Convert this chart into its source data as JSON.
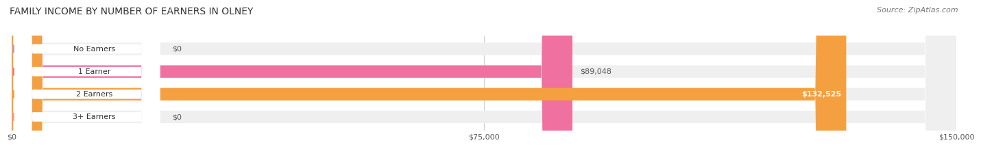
{
  "title": "FAMILY INCOME BY NUMBER OF EARNERS IN OLNEY",
  "source": "Source: ZipAtlas.com",
  "categories": [
    "No Earners",
    "1 Earner",
    "2 Earners",
    "3+ Earners"
  ],
  "values": [
    0,
    89048,
    132525,
    0
  ],
  "max_value": 150000,
  "bar_colors": [
    "#a0a0d8",
    "#f070a0",
    "#f5a040",
    "#f0a0a0"
  ],
  "bar_bg_color": "#efefef",
  "label_colors": [
    "#555555",
    "#555555",
    "#ffffff",
    "#555555"
  ],
  "value_labels": [
    "$0",
    "$89,048",
    "$132,525",
    "$0"
  ],
  "x_ticks": [
    0,
    75000,
    150000
  ],
  "x_tick_labels": [
    "$0",
    "$75,000",
    "$150,000"
  ],
  "background_color": "#ffffff",
  "title_fontsize": 10,
  "source_fontsize": 8,
  "label_fontsize": 8,
  "value_fontsize": 8
}
